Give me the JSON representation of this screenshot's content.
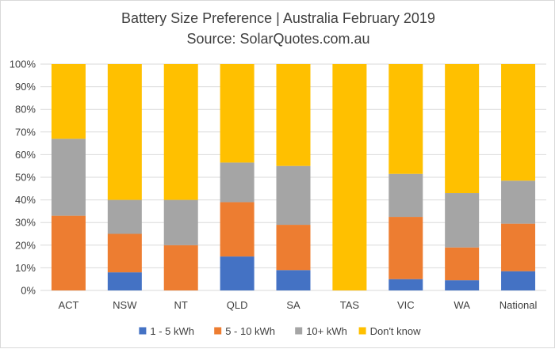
{
  "chart_data": {
    "type": "bar",
    "stacked": true,
    "title": "Battery Size Preference  | Australia February 2019",
    "subtitle": "Source: SolarQuotes.com.au",
    "categories": [
      "ACT",
      "NSW",
      "NT",
      "QLD",
      "SA",
      "TAS",
      "VIC",
      "WA",
      "National"
    ],
    "series": [
      {
        "name": "1 - 5 kWh",
        "color": "#4472c4",
        "values": [
          0,
          8,
          0,
          15,
          9,
          0,
          5,
          4.5,
          8.5
        ]
      },
      {
        "name": "5 - 10 kWh",
        "color": "#ed7d31",
        "values": [
          33,
          17,
          20,
          24,
          20,
          0,
          27.5,
          14.5,
          21
        ]
      },
      {
        "name": "10+ kWh",
        "color": "#a5a5a5",
        "values": [
          34,
          15,
          20,
          17.5,
          26,
          0,
          19,
          24,
          19
        ]
      },
      {
        "name": "Don't know",
        "color": "#ffc000",
        "values": [
          33,
          60,
          60,
          43.5,
          45,
          100,
          48.5,
          57,
          51.5
        ]
      }
    ],
    "yticks": [
      "0%",
      "10%",
      "20%",
      "30%",
      "40%",
      "50%",
      "60%",
      "70%",
      "80%",
      "90%",
      "100%"
    ],
    "ylim": [
      0,
      100
    ],
    "grid": true,
    "legend_position": "bottom"
  }
}
